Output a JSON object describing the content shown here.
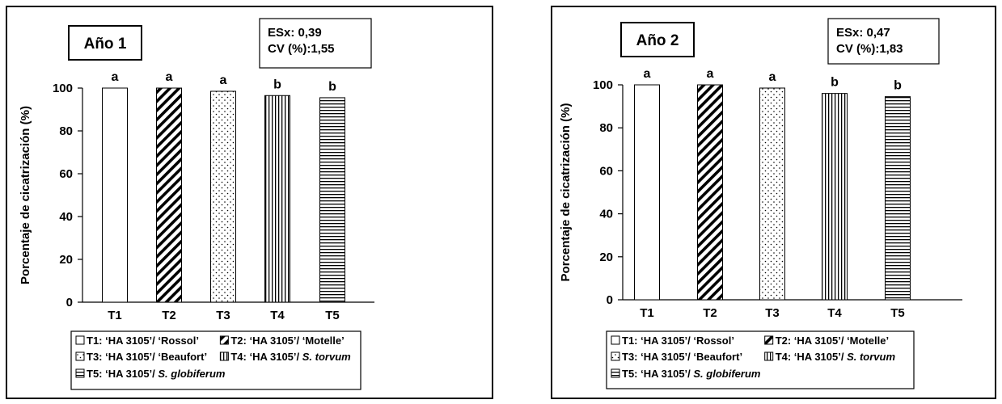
{
  "chart_data": [
    {
      "type": "bar",
      "title": "Año 1",
      "stats": [
        "ESx: 0,39",
        "CV (%):1,55"
      ],
      "ylabel": "Porcentaje  de cicatrización (%)",
      "xlabel": "",
      "ylim": [
        0,
        100
      ],
      "yticks": [
        0,
        20,
        40,
        60,
        80,
        100
      ],
      "grid": false,
      "categories": [
        "T1",
        "T2",
        "T3",
        "T4",
        "T5"
      ],
      "values": [
        100,
        100,
        98.5,
        96.5,
        95.5
      ],
      "letters": [
        "a",
        "a",
        "a",
        "b",
        "b"
      ],
      "patterns": [
        "none",
        "diagonal",
        "dots",
        "vertical",
        "horizontal"
      ],
      "legend": [
        {
          "pattern": "none",
          "text": "T1: ‘HA 3105’/ ‘Rossol’",
          "italic": ""
        },
        {
          "pattern": "diagonal",
          "text": "T2: ‘HA 3105’/ ‘Motelle’",
          "italic": ""
        },
        {
          "pattern": "dots",
          "text": "T3: ‘HA 3105’/ ‘Beaufort’",
          "italic": ""
        },
        {
          "pattern": "vertical",
          "text": "T4: ‘HA 3105’/ ",
          "italic": "S. torvum"
        },
        {
          "pattern": "horizontal",
          "text": "T5: ‘HA 3105’/ ",
          "italic": "S. globiferum"
        }
      ]
    },
    {
      "type": "bar",
      "title": "Año 2",
      "stats": [
        "ESx: 0,47",
        "CV (%):1,83"
      ],
      "ylabel": "Porcentaje de cicatrización (%)",
      "xlabel": "",
      "ylim": [
        0,
        100
      ],
      "yticks": [
        0,
        20,
        40,
        60,
        80,
        100
      ],
      "grid": false,
      "categories": [
        "T1",
        "T2",
        "T3",
        "T4",
        "T5"
      ],
      "values": [
        100,
        100,
        98.5,
        96,
        94.5
      ],
      "letters": [
        "a",
        "a",
        "a",
        "b",
        "b"
      ],
      "patterns": [
        "none",
        "diagonal",
        "dots",
        "vertical",
        "horizontal"
      ],
      "legend": [
        {
          "pattern": "none",
          "text": "T1: ‘HA 3105’/ ‘Rossol’",
          "italic": ""
        },
        {
          "pattern": "diagonal",
          "text": "T2: ‘HA 3105’/ ‘Motelle’",
          "italic": ""
        },
        {
          "pattern": "dots",
          "text": "T3: ‘HA 3105’/ ‘Beaufort’",
          "italic": ""
        },
        {
          "pattern": "vertical",
          "text": "T4: ‘HA 3105’/ ",
          "italic": "S. torvum"
        },
        {
          "pattern": "horizontal",
          "text": "T5: ‘HA 3105’/ ",
          "italic": "S. globiferum"
        }
      ]
    }
  ]
}
